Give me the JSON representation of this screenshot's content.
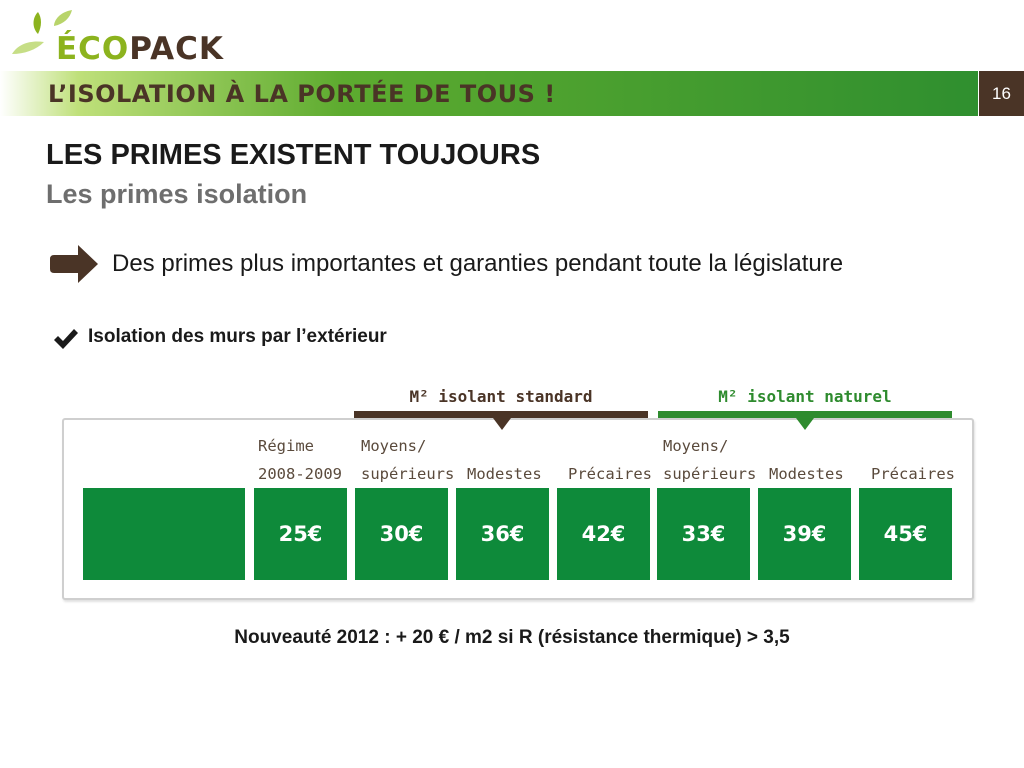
{
  "logo": {
    "text_eco": "ÉCO",
    "text_pack": "PACK",
    "icon": "leaves-icon"
  },
  "banner": {
    "title": "L’ISOLATION À LA PORTÉE DE TOUS !",
    "page_number": "16"
  },
  "slide": {
    "title": "LES PRIMES EXISTENT TOUJOURS",
    "subtitle": "Les primes isolation",
    "bullet": "Des primes plus importantes et garanties pendant toute la législature",
    "bullet_icon": "arrow-right-icon",
    "check_item": "Isolation des murs par l’extérieur",
    "check_icon": "checkmark-icon",
    "footnote": "Nouveauté 2012 : + 20 € / m2 si R (résistance thermique) > 3,5"
  },
  "grant_table": {
    "groups": [
      {
        "label": "M² isolant standard",
        "color": "#4a3426"
      },
      {
        "label": "M² isolant naturel",
        "color": "#2e8b2e"
      }
    ],
    "columns": [
      {
        "line1": "Régime",
        "line2": "2008-2009",
        "value": "25€"
      },
      {
        "line1": "Moyens/",
        "line2": "supérieurs",
        "value": "30€"
      },
      {
        "line1": "",
        "line2": "Modestes",
        "value": "36€"
      },
      {
        "line1": "",
        "line2": "Précaires",
        "value": "42€"
      },
      {
        "line1": "Moyens/",
        "line2": "supérieurs",
        "value": "33€"
      },
      {
        "line1": "",
        "line2": "Modestes",
        "value": "39€"
      },
      {
        "line1": "",
        "line2": "Précaires",
        "value": "45€"
      }
    ],
    "cell_color": "#0e8a3a"
  },
  "colors": {
    "brand_green": "#8cb31e",
    "brand_brown": "#4a3426",
    "dark_green": "#2e8b2e"
  }
}
